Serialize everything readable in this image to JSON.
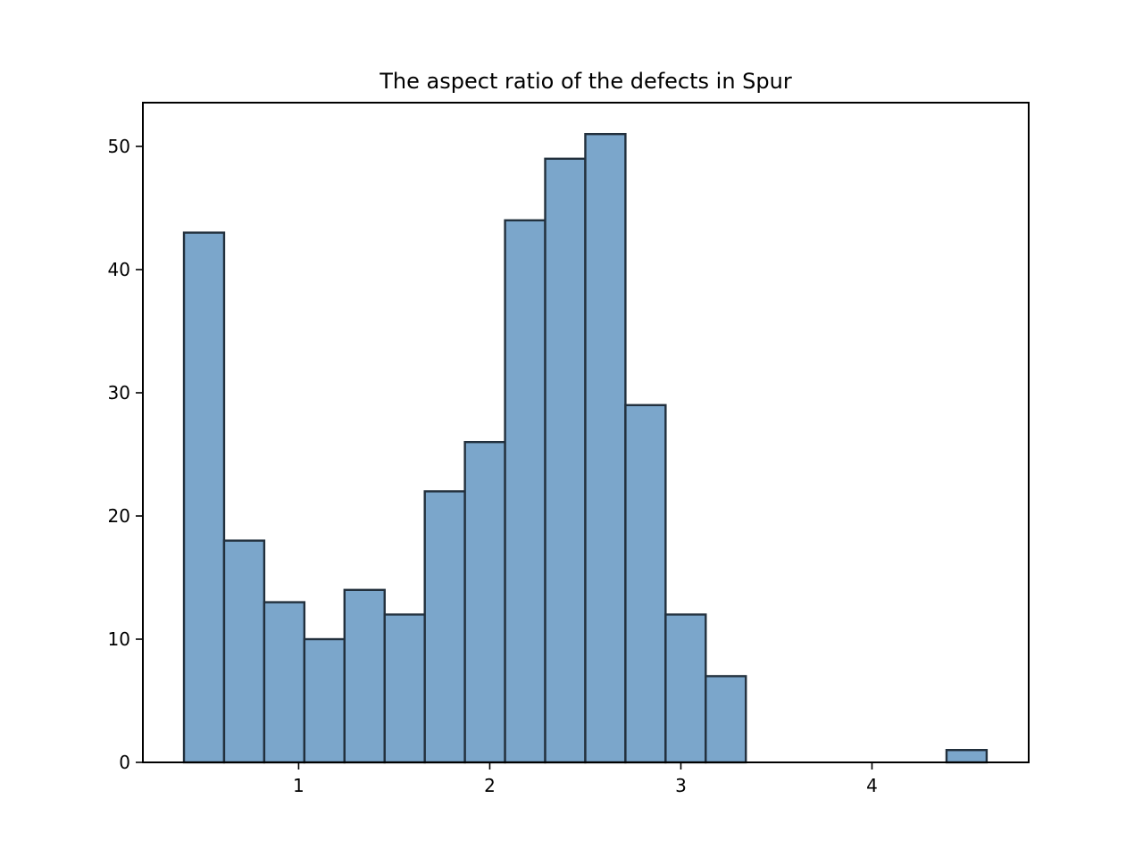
{
  "chart_data": {
    "type": "bar",
    "title": "The aspect ratio of the defects in Spur",
    "xlabel": "",
    "ylabel": "",
    "xlim": [
      0.185,
      4.82
    ],
    "ylim": [
      0,
      53.55
    ],
    "x_ticks": [
      1,
      2,
      3,
      4
    ],
    "y_ticks": [
      0,
      10,
      20,
      30,
      40,
      50
    ],
    "grid": false,
    "bar_fill": "#7ba6cb",
    "bar_edge": "#22303d",
    "bins": [
      {
        "start": 0.4,
        "end": 0.61,
        "count": 43
      },
      {
        "start": 0.61,
        "end": 0.82,
        "count": 18
      },
      {
        "start": 0.82,
        "end": 1.03,
        "count": 13
      },
      {
        "start": 1.03,
        "end": 1.24,
        "count": 10
      },
      {
        "start": 1.24,
        "end": 1.45,
        "count": 14
      },
      {
        "start": 1.45,
        "end": 1.66,
        "count": 12
      },
      {
        "start": 1.66,
        "end": 1.87,
        "count": 22
      },
      {
        "start": 1.87,
        "end": 2.08,
        "count": 26
      },
      {
        "start": 2.08,
        "end": 2.29,
        "count": 44
      },
      {
        "start": 2.29,
        "end": 2.5,
        "count": 49
      },
      {
        "start": 2.5,
        "end": 2.71,
        "count": 51
      },
      {
        "start": 2.71,
        "end": 2.92,
        "count": 29
      },
      {
        "start": 2.92,
        "end": 3.13,
        "count": 12
      },
      {
        "start": 3.13,
        "end": 3.34,
        "count": 7
      },
      {
        "start": 3.34,
        "end": 3.55,
        "count": 0
      },
      {
        "start": 3.55,
        "end": 3.76,
        "count": 0
      },
      {
        "start": 3.76,
        "end": 3.97,
        "count": 0
      },
      {
        "start": 3.97,
        "end": 4.18,
        "count": 0
      },
      {
        "start": 4.18,
        "end": 4.39,
        "count": 0
      },
      {
        "start": 4.39,
        "end": 4.6,
        "count": 1
      }
    ]
  }
}
